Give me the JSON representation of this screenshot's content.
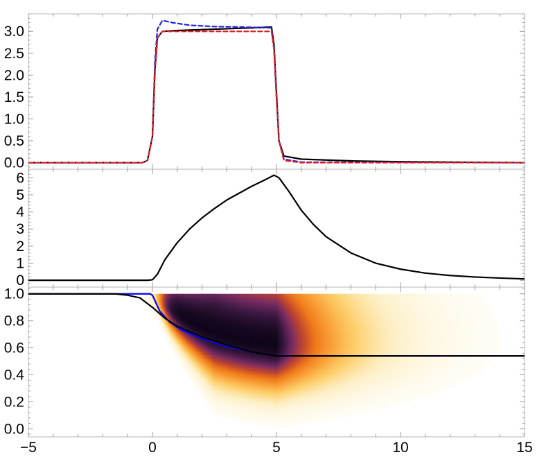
{
  "chart_data": [
    {
      "type": "line",
      "title": "",
      "xlabel": "",
      "ylabel": "",
      "xlim": [
        -5,
        15
      ],
      "ylim": [
        -0.15,
        3.4
      ],
      "yticks": [
        0.0,
        0.5,
        1.0,
        1.5,
        2.0,
        2.5,
        3.0
      ],
      "ytick_labels": [
        "0.0",
        "0.5",
        "1.0",
        "1.5",
        "2.0",
        "2.5",
        "3.0"
      ],
      "grid": false,
      "series": [
        {
          "color": "#000000",
          "dash": "solid",
          "points": [
            [
              -5,
              0
            ],
            [
              -0.4,
              0
            ],
            [
              -0.2,
              0.05
            ],
            [
              0,
              0.6
            ],
            [
              0.1,
              2.1
            ],
            [
              0.2,
              2.85
            ],
            [
              0.4,
              3.0
            ],
            [
              1,
              3.02
            ],
            [
              2,
              3.04
            ],
            [
              3,
              3.06
            ],
            [
              4,
              3.08
            ],
            [
              4.8,
              3.1
            ],
            [
              4.9,
              2.7
            ],
            [
              5.0,
              1.6
            ],
            [
              5.1,
              0.5
            ],
            [
              5.3,
              0.15
            ],
            [
              6,
              0.08
            ],
            [
              8,
              0.04
            ],
            [
              10,
              0.02
            ],
            [
              15,
              0.0
            ]
          ]
        },
        {
          "color": "#2222e0",
          "dash": "dashed",
          "points": [
            [
              -5,
              0
            ],
            [
              -0.4,
              0
            ],
            [
              -0.2,
              0.05
            ],
            [
              0,
              0.6
            ],
            [
              0.1,
              2.3
            ],
            [
              0.2,
              3.05
            ],
            [
              0.4,
              3.25
            ],
            [
              0.8,
              3.2
            ],
            [
              1.5,
              3.14
            ],
            [
              2.5,
              3.11
            ],
            [
              3.5,
              3.1
            ],
            [
              4.8,
              3.08
            ],
            [
              4.9,
              2.6
            ],
            [
              5.0,
              1.5
            ],
            [
              5.1,
              0.5
            ],
            [
              5.3,
              0.08
            ],
            [
              6,
              0.01
            ],
            [
              15,
              0.0
            ]
          ]
        },
        {
          "color": "#e02020",
          "dash": "dashed",
          "points": [
            [
              -5,
              0
            ],
            [
              -0.4,
              0
            ],
            [
              -0.2,
              0.05
            ],
            [
              0,
              0.6
            ],
            [
              0.1,
              2.1
            ],
            [
              0.2,
              2.85
            ],
            [
              0.4,
              3.0
            ],
            [
              4.8,
              3.0
            ],
            [
              4.9,
              2.6
            ],
            [
              5.0,
              1.5
            ],
            [
              5.1,
              0.5
            ],
            [
              5.3,
              0.05
            ],
            [
              6,
              0.0
            ],
            [
              15,
              0.0
            ]
          ]
        }
      ]
    },
    {
      "type": "line",
      "title": "",
      "xlabel": "",
      "ylabel": "",
      "xlim": [
        -5,
        15
      ],
      "ylim": [
        -0.4,
        6.5
      ],
      "yticks": [
        0,
        1,
        2,
        3,
        4,
        5,
        6
      ],
      "ytick_labels": [
        "0",
        "1",
        "2",
        "3",
        "4",
        "5",
        "6"
      ],
      "grid": false,
      "series": [
        {
          "color": "#000000",
          "dash": "solid",
          "points": [
            [
              -5,
              0
            ],
            [
              -0.2,
              0
            ],
            [
              0,
              0.03
            ],
            [
              0.2,
              0.35
            ],
            [
              0.5,
              1.2
            ],
            [
              1,
              2.2
            ],
            [
              1.5,
              3.0
            ],
            [
              2,
              3.65
            ],
            [
              2.5,
              4.2
            ],
            [
              3,
              4.7
            ],
            [
              3.5,
              5.1
            ],
            [
              4,
              5.5
            ],
            [
              4.5,
              5.85
            ],
            [
              4.9,
              6.15
            ],
            [
              5.1,
              6.0
            ],
            [
              5.5,
              5.2
            ],
            [
              6,
              4.1
            ],
            [
              6.5,
              3.25
            ],
            [
              7,
              2.55
            ],
            [
              8,
              1.6
            ],
            [
              9,
              1.0
            ],
            [
              10,
              0.65
            ],
            [
              11,
              0.42
            ],
            [
              12,
              0.28
            ],
            [
              13,
              0.19
            ],
            [
              14,
              0.13
            ],
            [
              15,
              0.08
            ]
          ]
        }
      ]
    },
    {
      "type": "heatmap",
      "title": "",
      "xlabel": "",
      "ylabel": "",
      "xlim": [
        -5,
        15
      ],
      "ylim": [
        -0.06,
        1.05
      ],
      "yticks": [
        0.0,
        0.2,
        0.4,
        0.6,
        0.8,
        1.0
      ],
      "ytick_labels": [
        "0.0",
        "0.2",
        "0.4",
        "0.6",
        "0.8",
        "1.0"
      ],
      "xticks": [
        -5,
        0,
        5,
        10,
        15
      ],
      "xtick_labels": [
        "−5",
        "0",
        "5",
        "10",
        "15"
      ],
      "grid": false,
      "colormap": [
        "#ffffff",
        "#fdf0c8",
        "#fdcf6a",
        "#f9a23a",
        "#f07a1a",
        "#c1462d",
        "#7a2c63",
        "#3a1840",
        "#10061a"
      ],
      "series": [
        {
          "color": "#0000ff",
          "dash": "solid",
          "points": [
            [
              -5,
              1.0
            ],
            [
              -0.1,
              1.0
            ],
            [
              0,
              0.99
            ],
            [
              0.1,
              0.95
            ],
            [
              0.3,
              0.87
            ],
            [
              0.7,
              0.79
            ],
            [
              1.2,
              0.73
            ],
            [
              2,
              0.67
            ],
            [
              3,
              0.61
            ],
            [
              4,
              0.57
            ],
            [
              5,
              0.54
            ],
            [
              15,
              0.54
            ]
          ]
        },
        {
          "color": "#000000",
          "dash": "solid",
          "points": [
            [
              -5,
              1.0
            ],
            [
              -1.5,
              1.0
            ],
            [
              -1,
              0.99
            ],
            [
              -0.5,
              0.97
            ],
            [
              0,
              0.9
            ],
            [
              0.5,
              0.82
            ],
            [
              1,
              0.76
            ],
            [
              1.5,
              0.72
            ],
            [
              2,
              0.68
            ],
            [
              3,
              0.62
            ],
            [
              4,
              0.57
            ],
            [
              5,
              0.54
            ],
            [
              15,
              0.54
            ]
          ]
        }
      ]
    }
  ]
}
